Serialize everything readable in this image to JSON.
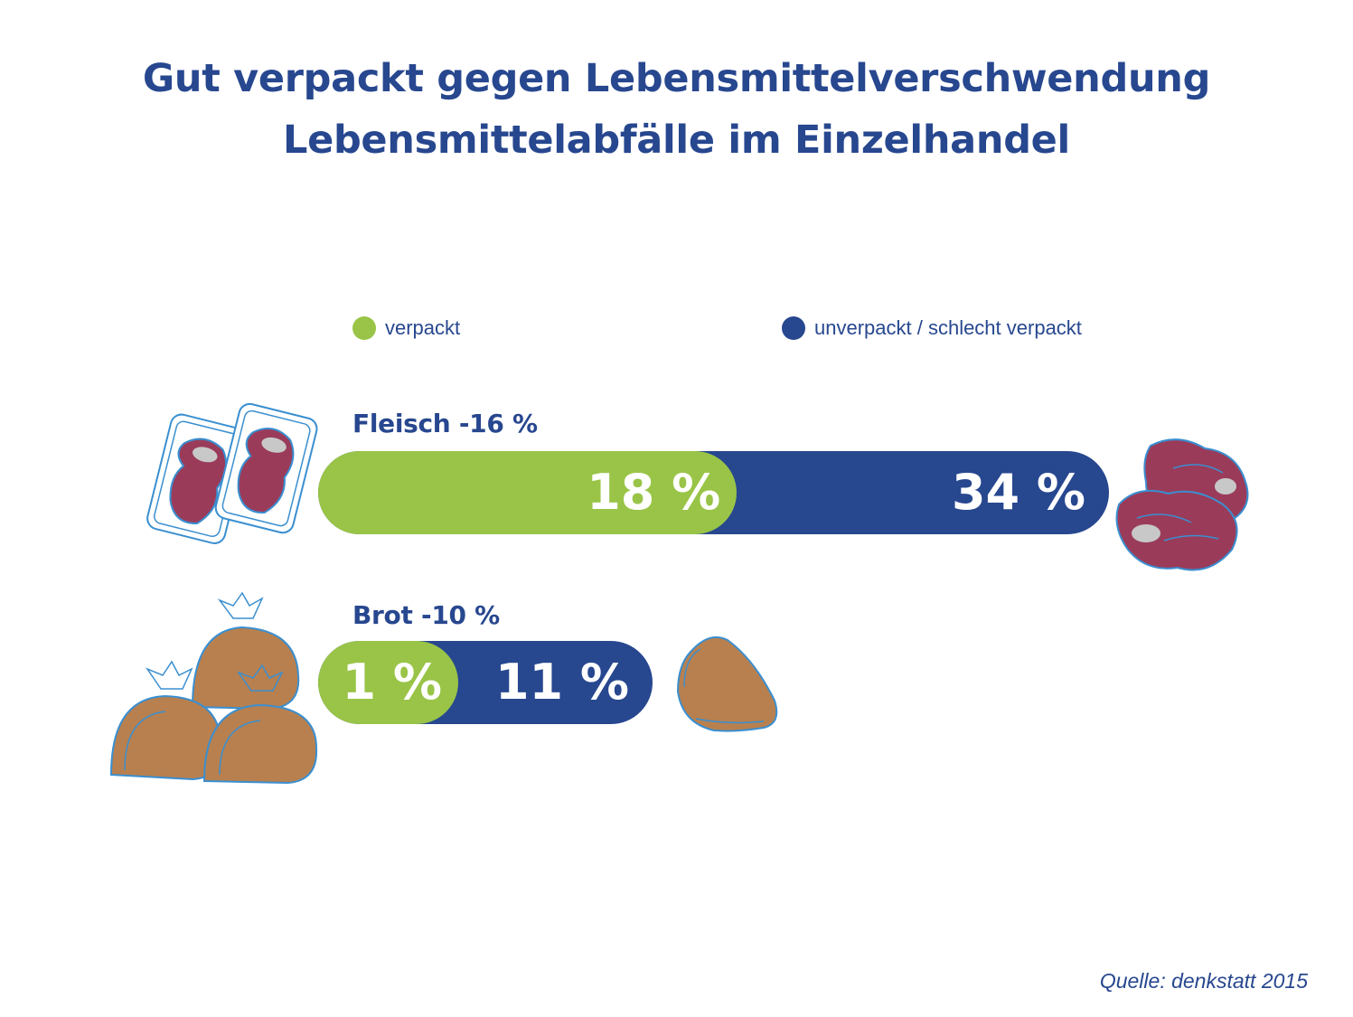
{
  "title_line1": "Gut verpackt gegen Lebensmittelverschwendung",
  "title_line2": "Lebensmittelabfälle im Einzelhandel",
  "colors": {
    "verpackt": "#99c447",
    "unverpackt": "#27478f",
    "text": "#27478f"
  },
  "legend": [
    {
      "label": "verpackt",
      "color": "#99c447"
    },
    {
      "label": "unverpackt / schlecht verpackt",
      "color": "#27478f"
    }
  ],
  "source": "Quelle: denkstatt 2015",
  "chart_data": {
    "type": "bar",
    "orientation": "horizontal",
    "categories": [
      "Fleisch",
      "Brot"
    ],
    "category_labels": [
      "Fleisch -16 %",
      "Brot -10 %"
    ],
    "series": [
      {
        "name": "verpackt",
        "values": [
          18,
          1
        ],
        "labels": [
          "18 %",
          "1 %"
        ]
      },
      {
        "name": "unverpackt / schlecht verpackt",
        "values": [
          34,
          11
        ],
        "labels": [
          "34 %",
          "11 %"
        ]
      }
    ],
    "unit": "%",
    "legend_position": "top",
    "grid": false
  }
}
